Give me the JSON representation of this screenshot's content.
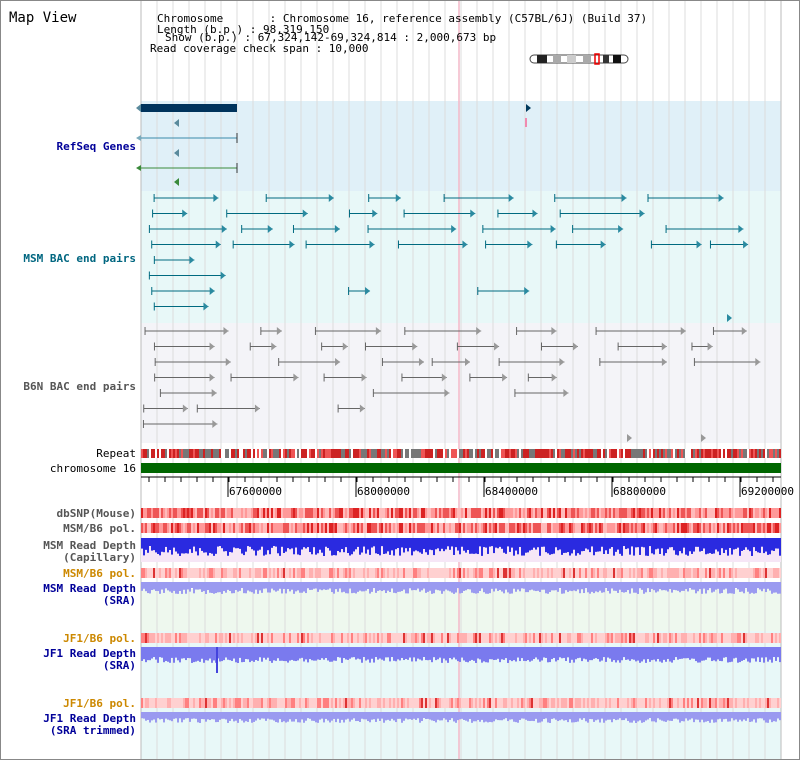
{
  "view": {
    "title": "Map View"
  },
  "header": {
    "chromosome": "Chromosome       : Chromosome 16, reference assembly (C57BL/6J) (Build 37)",
    "length": "Length (b.p.) : 98,319,150",
    "show": "Show (b.p.) : 67,324,142-69,324,814 : 2,000,673 bp",
    "coverage": "Read coverage check span : 10,000"
  },
  "tracks": {
    "refseq": "RefSeq Genes",
    "msm_bac": "MSM BAC end pairs",
    "b6n_bac": "B6N BAC end pairs",
    "repeat": "Repeat",
    "chromosome": "chromosome 16",
    "dbsnp": "dbSNP(Mouse)",
    "msm_b6_pol_1": "MSM/B6 pol.",
    "msm_depth_cap_1": "MSM Read Depth",
    "msm_depth_cap_2": "(Capillary)",
    "msm_b6_pol_2": "MSM/B6 pol.",
    "msm_depth_sra_1": "MSM Read Depth",
    "msm_depth_sra_2": "(SRA)",
    "jf1_b6_pol_1": "JF1/B6 pol.",
    "jf1_depth_sra_1": "JF1 Read Depth",
    "jf1_depth_sra_2": "(SRA)",
    "jf1_b6_pol_2": "JF1/B6 pol.",
    "jf1_depth_trim_1": "JF1 Read Depth",
    "jf1_depth_trim_2": "(SRA trimmed)"
  },
  "axis": {
    "ticks": [
      "67600000",
      "68000000",
      "68400000",
      "68800000",
      "69200000"
    ]
  },
  "colors": {
    "refseq_label": "#000099",
    "msm_label": "#006680",
    "b6n_label": "#555555",
    "pol_label": "#cc8800",
    "depth_label": "#000099",
    "chromosome_bar": "#006600"
  }
}
